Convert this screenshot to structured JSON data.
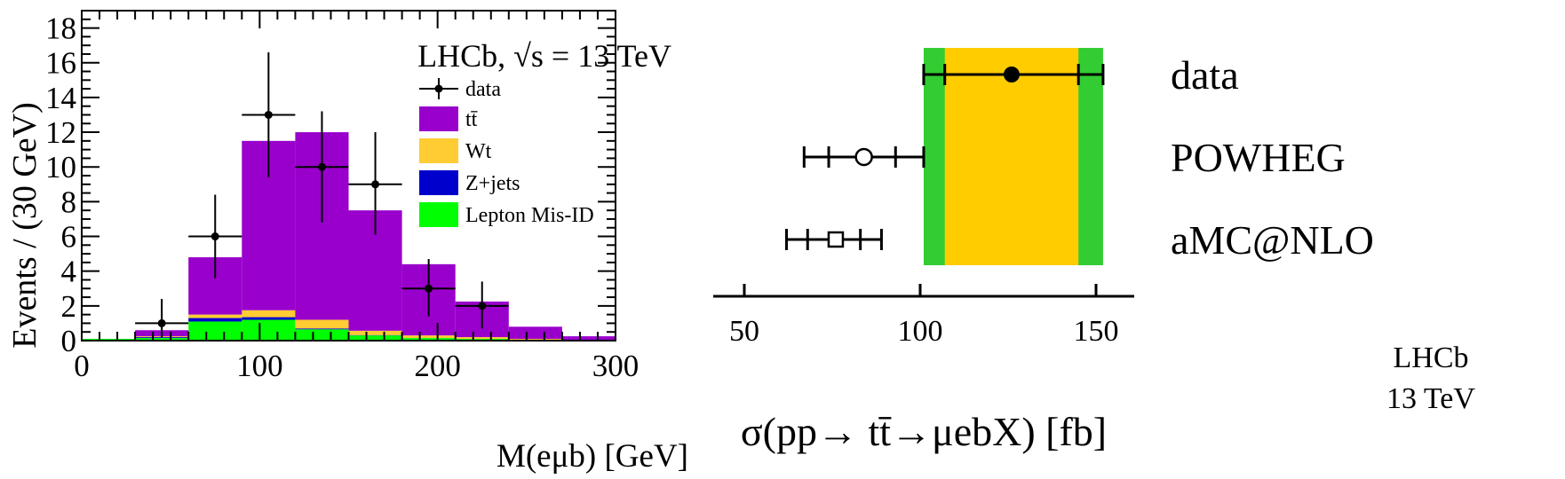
{
  "chart_data": [
    {
      "type": "bar",
      "stacked": true,
      "xlabel": "M(eμb) [GeV]",
      "ylabel": "Events / (30 GeV)",
      "annotation": "LHCb,  √s = 13 TeV",
      "xlim": [
        0,
        300
      ],
      "ylim": [
        0,
        19
      ],
      "xticks": [
        0,
        100,
        200,
        300
      ],
      "xtick_labels": [
        "0",
        "100",
        "200",
        "300"
      ],
      "yticks": [
        0,
        2,
        4,
        6,
        8,
        10,
        12,
        14,
        16,
        18
      ],
      "ytick_labels": [
        "0",
        "2",
        "4",
        "6",
        "8",
        "10",
        "12",
        "14",
        "16",
        "18"
      ],
      "bin_edges": [
        0,
        30,
        60,
        90,
        120,
        150,
        180,
        210,
        240,
        270,
        300
      ],
      "series": [
        {
          "name": "Lepton Mis-ID",
          "color": "#00ff00",
          "values": [
            0.1,
            0.15,
            1.1,
            1.2,
            0.65,
            0.3,
            0.15,
            0.1,
            0.05,
            0.05
          ]
        },
        {
          "name": "Z+jets",
          "color": "#0000cc",
          "values": [
            0,
            0.05,
            0.2,
            0.15,
            0.05,
            0.02,
            0,
            0,
            0,
            0
          ]
        },
        {
          "name": "Wt",
          "color": "#ffcc33",
          "values": [
            0,
            0.05,
            0.2,
            0.4,
            0.5,
            0.25,
            0.15,
            0.1,
            0.05,
            0
          ]
        },
        {
          "name": "t̄t",
          "legend_label": "tt̄",
          "color": "#9900cc",
          "values": [
            0,
            0.35,
            3.3,
            9.75,
            10.8,
            6.93,
            4.1,
            2.05,
            0.7,
            0.2
          ]
        }
      ],
      "data": {
        "name": "data",
        "x": [
          45,
          75,
          105,
          135,
          165,
          195,
          225
        ],
        "y": [
          1,
          6,
          13,
          10,
          9,
          3,
          2
        ],
        "yerr": [
          [
            0.8,
            1.4
          ],
          [
            2.4,
            2.4
          ],
          [
            3.6,
            3.6
          ],
          [
            3.2,
            3.2
          ],
          [
            2.9,
            3.0
          ],
          [
            1.6,
            1.7
          ],
          [
            1.3,
            1.4
          ]
        ]
      },
      "legend": [
        "data",
        "tt̄",
        "Wt",
        "Z+jets",
        "Lepton Mis-ID"
      ]
    },
    {
      "type": "scatter",
      "xlabel": "σ(pp→ tt̄→μebX) [fb]",
      "xlim": [
        41,
        161
      ],
      "xticks": [
        50,
        100,
        150
      ],
      "xtick_labels": [
        "50",
        "100",
        "150"
      ],
      "band": {
        "inner": [
          107,
          145
        ],
        "outer": [
          101,
          152
        ],
        "inner_color": "#ffcc00",
        "outer_color": "#33cc33"
      },
      "points": [
        {
          "label": "data",
          "value": 126,
          "stat": [
            107,
            145
          ],
          "total": [
            101,
            152
          ],
          "marker": "filled-circle"
        },
        {
          "label": "POWHEG",
          "value": 84,
          "stat": [
            74,
            93
          ],
          "total": [
            67,
            101
          ],
          "marker": "open-circle"
        },
        {
          "label": "aMC@NLO",
          "value": 76,
          "stat": [
            68,
            83
          ],
          "total": [
            62,
            89
          ],
          "marker": "open-square"
        }
      ],
      "corner_text": [
        "LHCb",
        "13 TeV"
      ]
    }
  ]
}
